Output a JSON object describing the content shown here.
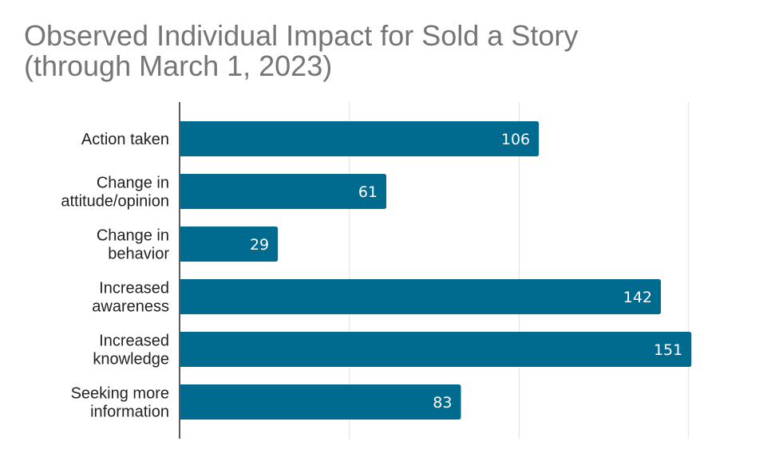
{
  "chart_data": {
    "type": "bar",
    "orientation": "horizontal",
    "title_lines": [
      "Observed Individual Impact for Sold a Story",
      "(through March 1, 2023)"
    ],
    "categories": [
      [
        "Action taken"
      ],
      [
        "Change in",
        "attitude/opinion"
      ],
      [
        "Change in",
        "behavior"
      ],
      [
        "Increased",
        "awareness"
      ],
      [
        "Increased",
        "knowledge"
      ],
      [
        "Seeking more",
        "information"
      ]
    ],
    "values": [
      106,
      61,
      29,
      142,
      151,
      83
    ],
    "xlim": [
      0,
      150
    ],
    "x_gridlines": [
      50,
      100,
      150
    ],
    "grid": true,
    "data_labels": true,
    "legend": "none",
    "colors": {
      "bar": "#006b8f",
      "axis": "#222222",
      "grid": "#e6e6e6",
      "title": "#757575",
      "data_label": "#ffffff"
    }
  }
}
